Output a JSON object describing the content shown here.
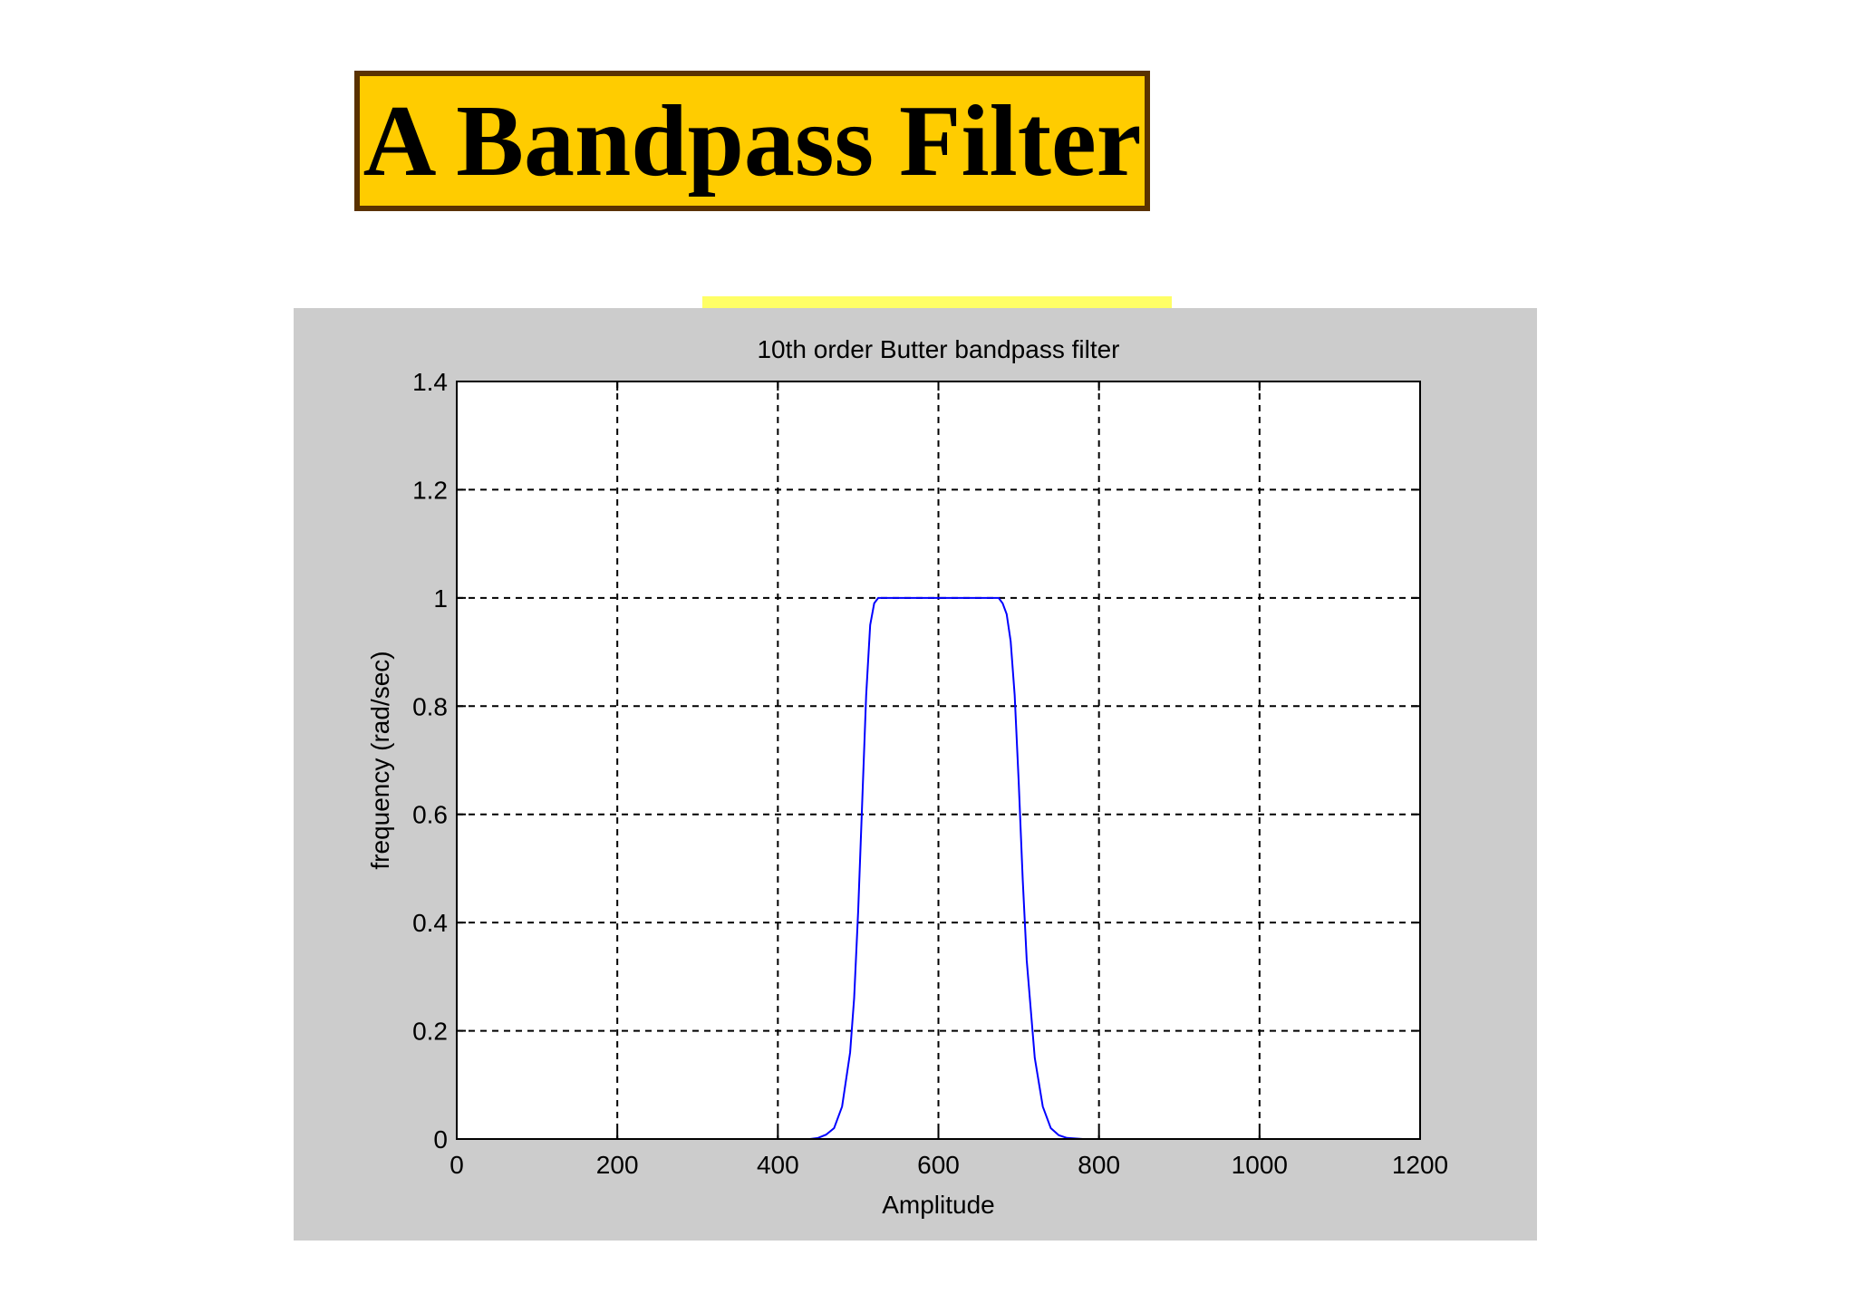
{
  "slide": {
    "title": "A Bandpass Filter"
  },
  "colors": {
    "title_background": "#ffcc00",
    "title_border": "#5a3200",
    "figure_background": "#cccccc",
    "plot_background": "#ffffff",
    "series_line": "#0000ff",
    "highlight_strip": "#ffff66"
  },
  "chart_data": {
    "type": "line",
    "title": "10th order Butter bandpass filter",
    "xlabel": "Amplitude",
    "ylabel": "frequency (rad/sec)",
    "xlim": [
      0,
      1200
    ],
    "ylim": [
      0,
      1.4
    ],
    "xticks": [
      0,
      200,
      400,
      600,
      800,
      1000,
      1200
    ],
    "yticks": [
      0,
      0.2,
      0.4,
      0.6,
      0.8,
      1,
      1.2,
      1.4
    ],
    "xtick_labels": [
      "0",
      "200",
      "400",
      "600",
      "800",
      "1000",
      "1200"
    ],
    "ytick_labels": [
      "0",
      "0.2",
      "0.4",
      "0.6",
      "0.8",
      "1",
      "1.2",
      "1.4"
    ],
    "grid": true,
    "grid_style": "dashed",
    "legend": "none",
    "series": [
      {
        "x": [
          45,
          440,
          450,
          460,
          470,
          480,
          490,
          495,
          500,
          505,
          510,
          515,
          520,
          525,
          530,
          540,
          560,
          600,
          640,
          660,
          670,
          675,
          680,
          685,
          690,
          695,
          700,
          705,
          710,
          720,
          730,
          740,
          750,
          760,
          780,
          800,
          1200
        ],
        "y": [
          0,
          0,
          0.002,
          0.008,
          0.02,
          0.06,
          0.16,
          0.26,
          0.42,
          0.62,
          0.82,
          0.95,
          0.99,
          1.0,
          1.0,
          1.0,
          1.0,
          1.0,
          1.0,
          1.0,
          1.0,
          1.0,
          0.99,
          0.97,
          0.92,
          0.82,
          0.66,
          0.48,
          0.33,
          0.15,
          0.06,
          0.02,
          0.007,
          0.002,
          0,
          0,
          0
        ]
      }
    ]
  }
}
